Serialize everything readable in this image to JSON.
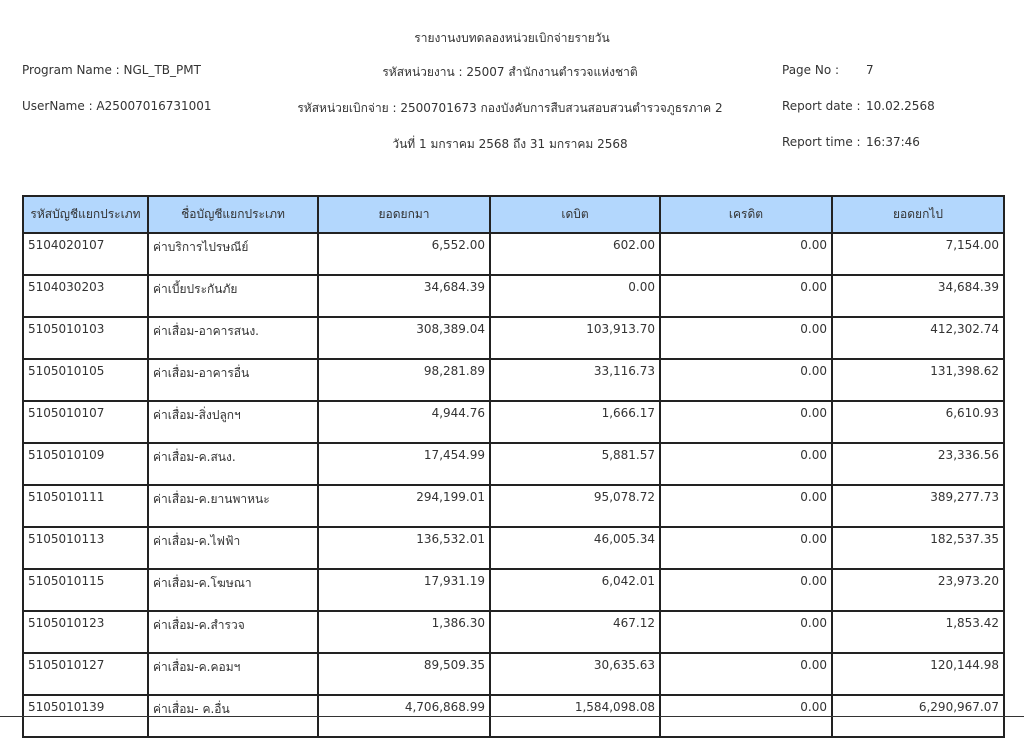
{
  "report": {
    "title": "รายงานงบทดลองหน่วยเบิกจ่ายรายวัน",
    "program_name": "Program Name : NGL_TB_PMT",
    "username": "UserName : A25007016731001",
    "agency": "รหัสหน่วยงาน : 25007 สำนักงานตำรวจแห่งชาติ",
    "disbursement_unit": "รหัสหน่วยเบิกจ่าย : 2500701673 กองบังคับการสืบสวนสอบสวนตำรวจภูธรภาค 2",
    "date_range": "วันที่ 1 มกราคม 2568 ถึง 31 มกราคม 2568",
    "page_no_label": "Page No :",
    "page_no": "7",
    "report_date_label": "Report date :",
    "report_date": "10.02.2568",
    "report_time_label": "Report time :",
    "report_time": "16:37:46"
  },
  "table": {
    "headers": [
      "รหัสบัญชีแยกประเภท",
      "ชื่อบัญชีแยกประเภท",
      "ยอดยกมา",
      "เดบิต",
      "เครดิต",
      "ยอดยกไป"
    ],
    "rows": [
      [
        "5104020107",
        "ค่าบริการไปรษณีย์",
        "6,552.00",
        "602.00",
        "0.00",
        "7,154.00"
      ],
      [
        "5104030203",
        "ค่าเบี้ยประกันภัย",
        "34,684.39",
        "0.00",
        "0.00",
        "34,684.39"
      ],
      [
        "5105010103",
        "ค่าเสื่อม-อาคารสนง.",
        "308,389.04",
        "103,913.70",
        "0.00",
        "412,302.74"
      ],
      [
        "5105010105",
        "ค่าเสื่อม-อาคารอื่น",
        "98,281.89",
        "33,116.73",
        "0.00",
        "131,398.62"
      ],
      [
        "5105010107",
        "ค่าเสื่อม-สิ่งปลูกฯ",
        "4,944.76",
        "1,666.17",
        "0.00",
        "6,610.93"
      ],
      [
        "5105010109",
        "ค่าเสื่อม-ค.สนง.",
        "17,454.99",
        "5,881.57",
        "0.00",
        "23,336.56"
      ],
      [
        "5105010111",
        "ค่าเสื่อม-ค.ยานพาหนะ",
        "294,199.01",
        "95,078.72",
        "0.00",
        "389,277.73"
      ],
      [
        "5105010113",
        "ค่าเสื่อม-ค.ไฟฟ้า",
        "136,532.01",
        "46,005.34",
        "0.00",
        "182,537.35"
      ],
      [
        "5105010115",
        "ค่าเสื่อม-ค.โฆษณา",
        "17,931.19",
        "6,042.01",
        "0.00",
        "23,973.20"
      ],
      [
        "5105010123",
        "ค่าเสื่อม-ค.สำรวจ",
        "1,386.30",
        "467.12",
        "0.00",
        "1,853.42"
      ],
      [
        "5105010127",
        "ค่าเสื่อม-ค.คอมฯ",
        "89,509.35",
        "30,635.63",
        "0.00",
        "120,144.98"
      ],
      [
        "5105010139",
        "ค่าเสื่อม- ค.อื่น",
        "4,706,868.99",
        "1,584,098.08",
        "0.00",
        "6,290,967.07"
      ]
    ]
  },
  "colors": {
    "header_bg": "#b3d7fd"
  }
}
